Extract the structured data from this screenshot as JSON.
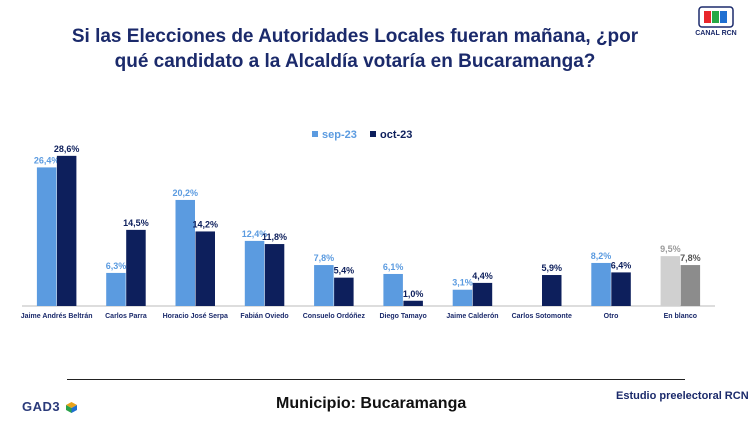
{
  "title_line1": "Si las Elecciones de Autoridades Locales fueran mañana, ¿por",
  "title_line2": "qué candidato a la Alcaldía votaría en Bucaramanga?",
  "logo_caption": "CANAL RCN",
  "footer": {
    "gad3": "GAD3",
    "municipio": "Municipio: Bucaramanga",
    "estudio": "Estudio preelectoral RCN"
  },
  "colors": {
    "sep": "#5b9be0",
    "oct": "#0d1f5c",
    "blank_sep": "#d0d0d0",
    "blank_oct": "#8c8c8c",
    "title": "#1b2a6b"
  },
  "chart_data": {
    "type": "bar",
    "legend_position": "top-center",
    "categories": [
      "Jaime Andrés Beltrán",
      "Carlos Parra",
      "Horacio José Serpa",
      "Fabián Oviedo",
      "Consuelo Ordóñez",
      "Diego Tamayo",
      "Jaime Calderón",
      "Carlos Sotomonte",
      "Otro",
      "En blanco"
    ],
    "series": [
      {
        "name": "sep-23",
        "values": [
          26.4,
          6.3,
          20.2,
          12.4,
          7.8,
          6.1,
          3.1,
          null,
          8.2,
          9.5
        ],
        "labels": [
          "26,4%",
          "6,3%",
          "20,2%",
          "12,4%",
          "7,8%",
          "6,1%",
          "3,1%",
          null,
          "8,2%",
          "9,5%"
        ]
      },
      {
        "name": "oct-23",
        "values": [
          28.6,
          14.5,
          14.2,
          11.8,
          5.4,
          1.0,
          4.4,
          5.9,
          6.4,
          7.8
        ],
        "labels": [
          "28,6%",
          "14,5%",
          "14,2%",
          "11,8%",
          "5,4%",
          "1,0%",
          "4,4%",
          "5,9%",
          "6,4%",
          "7,8%"
        ]
      }
    ]
  }
}
